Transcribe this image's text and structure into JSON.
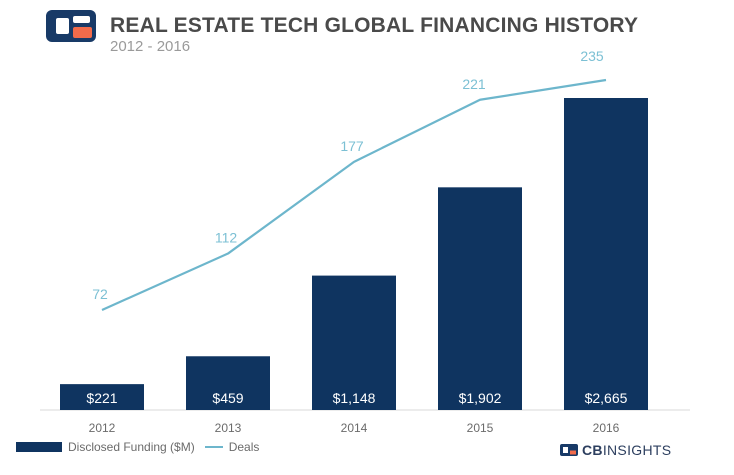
{
  "header": {
    "title": "REAL ESTATE TECH GLOBAL FINANCING HISTORY",
    "subtitle": "2012 - 2016",
    "logo_icon": "cb-insights-logo-icon"
  },
  "colors": {
    "bar": "#0f3460",
    "line": "#6db6cc",
    "line_label": "#7cc0d4",
    "axis_text": "#6b6b6b",
    "bar_label": "#ffffff",
    "logo_blue": "#183a67",
    "logo_orange": "#f26b4b"
  },
  "chart_data": {
    "type": "bar",
    "categories": [
      "2012",
      "2013",
      "2014",
      "2015",
      "2016"
    ],
    "series": [
      {
        "name": "Disclosed Funding ($M)",
        "type": "bar",
        "values": [
          221,
          459,
          1148,
          1902,
          2665
        ],
        "labels": [
          "$221",
          "$459",
          "$1,148",
          "$1,902",
          "$2,665"
        ]
      },
      {
        "name": "Deals",
        "type": "line",
        "values": [
          72,
          112,
          177,
          221,
          235
        ],
        "labels": [
          "72",
          "112",
          "177",
          "221",
          "235"
        ]
      }
    ],
    "grid": false,
    "legend_position": "bottom-left"
  },
  "footer": {
    "brand_bold": "CB",
    "brand_light": "INSIGHTS"
  }
}
